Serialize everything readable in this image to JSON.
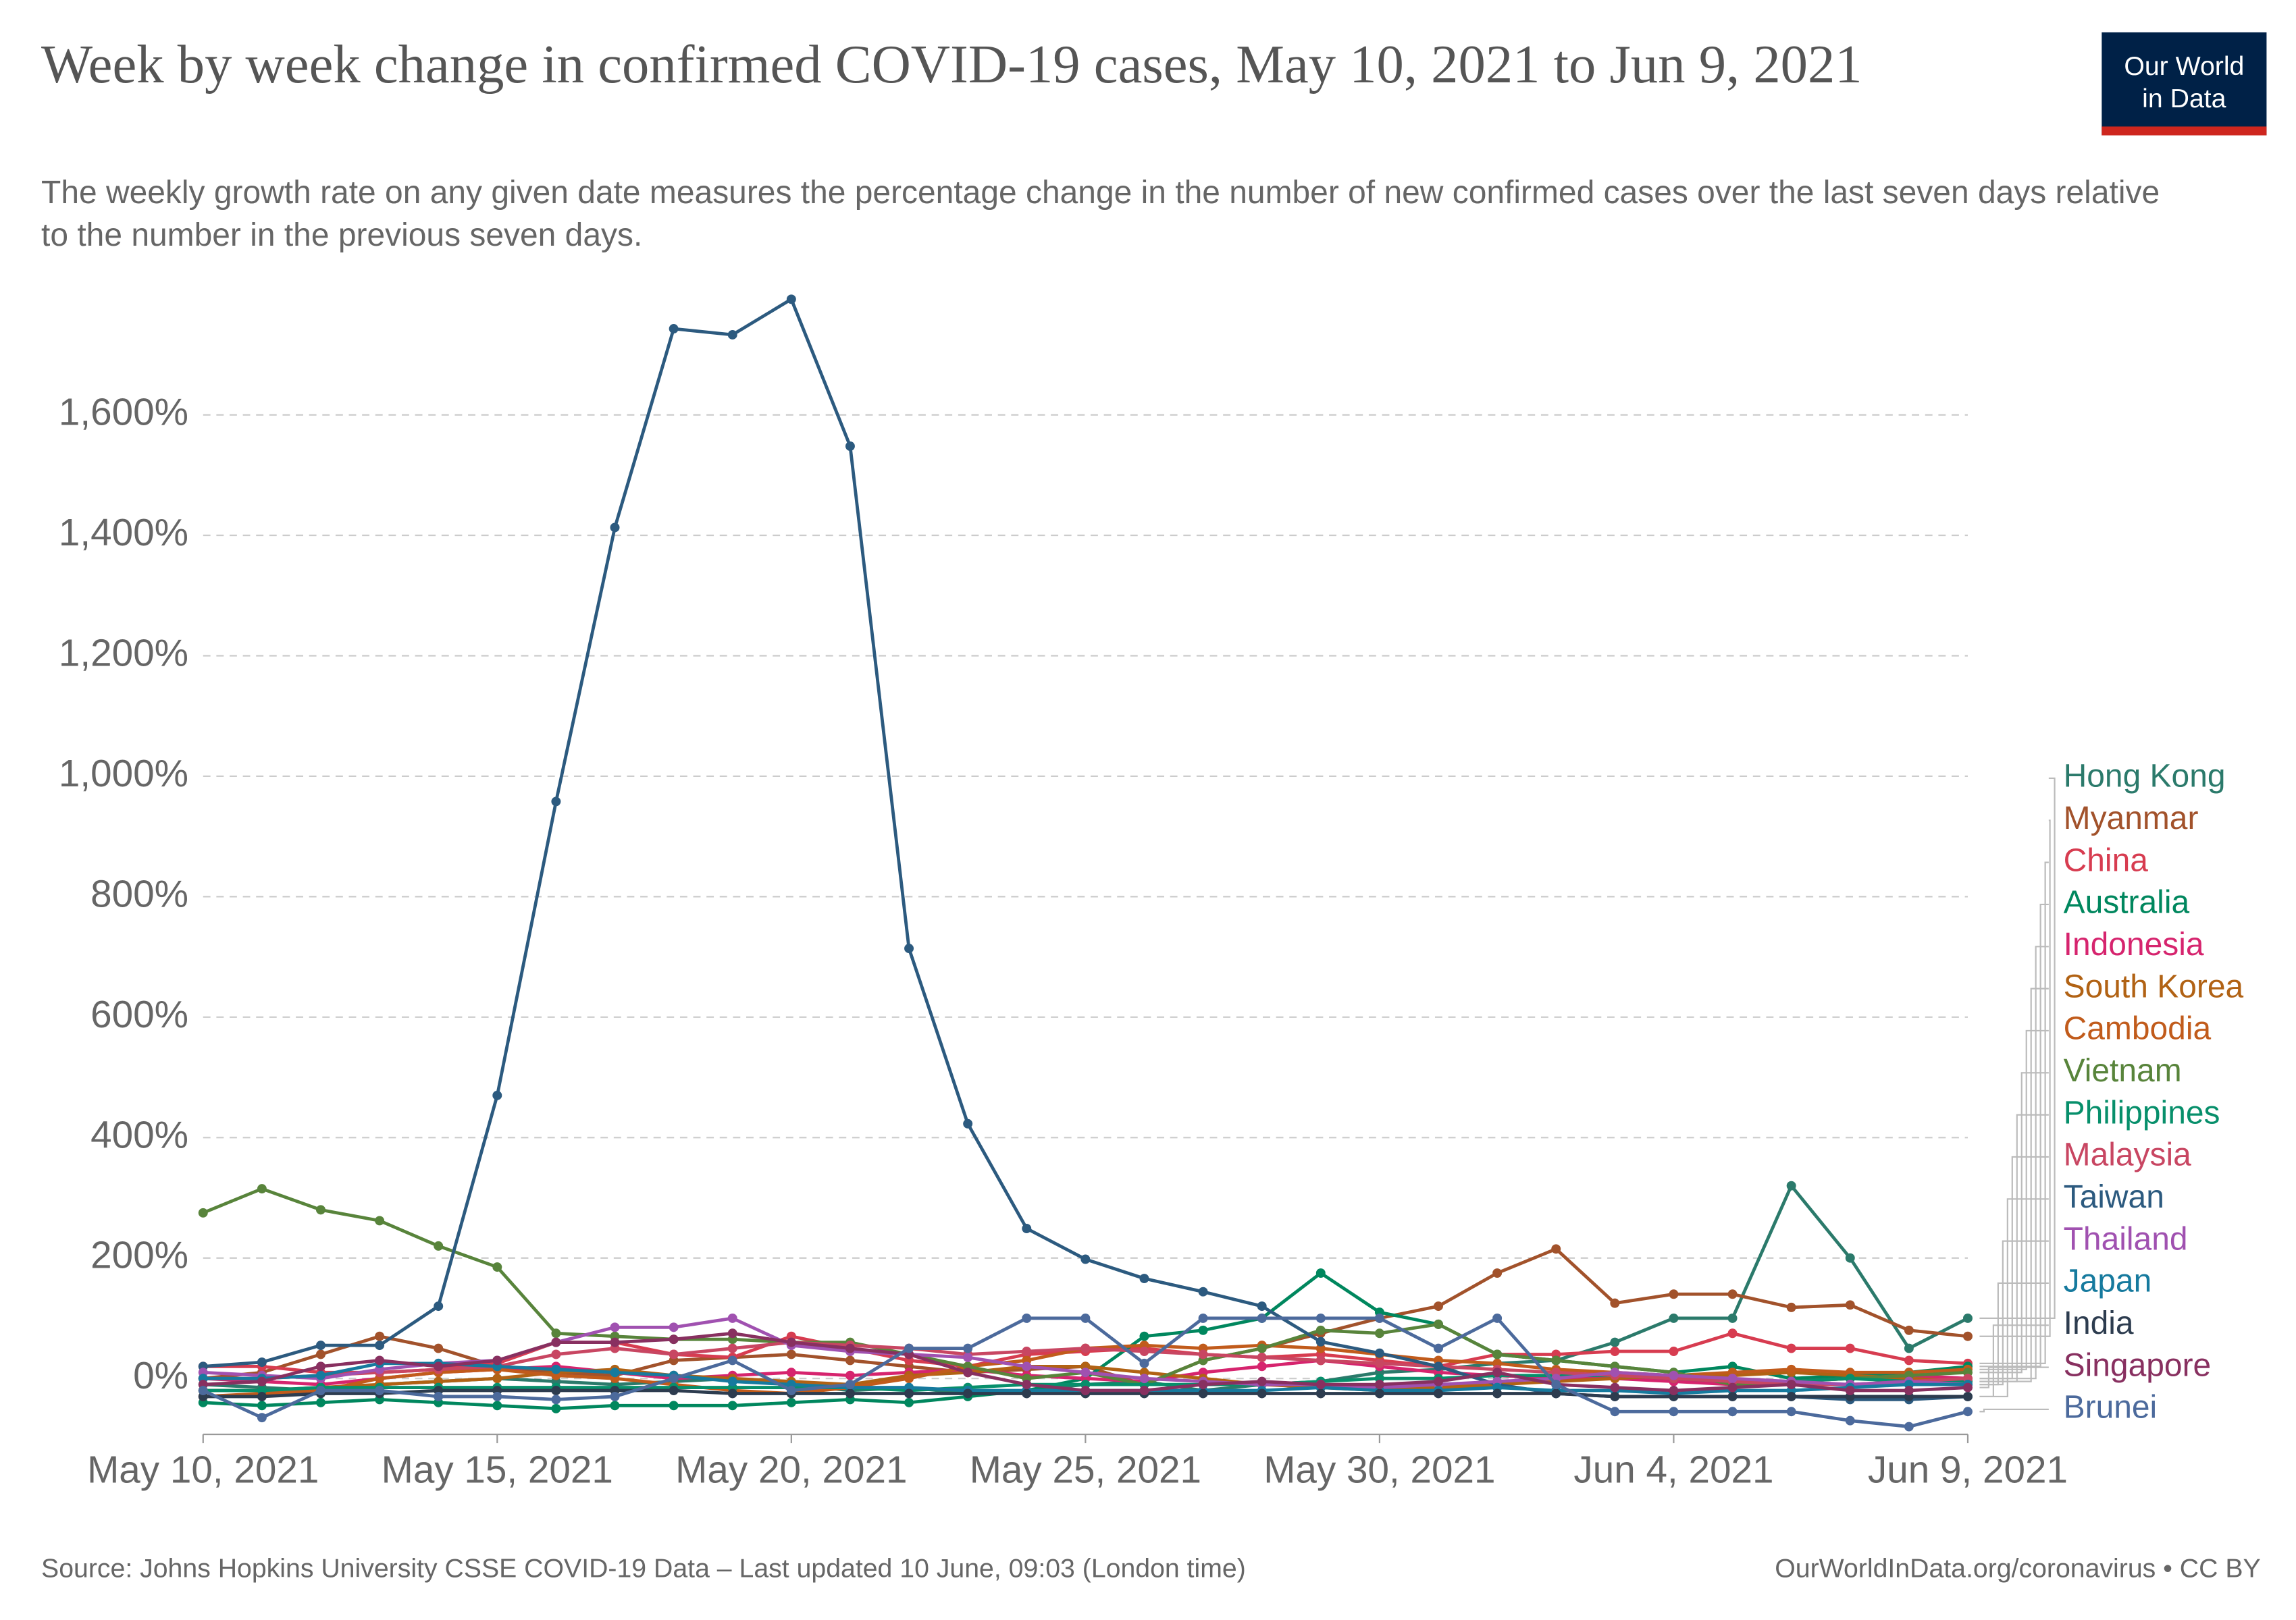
{
  "logo": [
    "Our World",
    "in Data"
  ],
  "chart_data": {
    "type": "line",
    "title": "Week by week change in confirmed COVID-19 cases, May 10, 2021 to Jun 9, 2021",
    "subtitle": "The weekly growth rate on any given date measures the percentage change in the number of new confirmed cases over the last seven days relative to the number in the previous seven days.",
    "source": "Source: Johns Hopkins University CSSE COVID-19 Data – Last updated 10 June, 09:03 (London time)",
    "credit": "OurWorldInData.org/coronavirus • CC BY",
    "x": [
      "2021-05-10",
      "2021-05-11",
      "2021-05-12",
      "2021-05-13",
      "2021-05-14",
      "2021-05-15",
      "2021-05-16",
      "2021-05-17",
      "2021-05-18",
      "2021-05-19",
      "2021-05-20",
      "2021-05-21",
      "2021-05-22",
      "2021-05-23",
      "2021-05-24",
      "2021-05-25",
      "2021-05-26",
      "2021-05-27",
      "2021-05-28",
      "2021-05-29",
      "2021-05-30",
      "2021-05-31",
      "2021-06-01",
      "2021-06-02",
      "2021-06-03",
      "2021-06-04",
      "2021-06-05",
      "2021-06-06",
      "2021-06-07",
      "2021-06-08",
      "2021-06-09"
    ],
    "xlim": [
      "2021-05-10",
      "2021-06-09"
    ],
    "xticks": [
      {
        "value": "2021-05-10",
        "label": "May 10, 2021"
      },
      {
        "value": "2021-05-15",
        "label": "May 15, 2021"
      },
      {
        "value": "2021-05-20",
        "label": "May 20, 2021"
      },
      {
        "value": "2021-05-25",
        "label": "May 25, 2021"
      },
      {
        "value": "2021-05-30",
        "label": "May 30, 2021"
      },
      {
        "value": "2021-06-04",
        "label": "Jun 4, 2021"
      },
      {
        "value": "2021-06-09",
        "label": "Jun 9, 2021"
      }
    ],
    "ylim": [
      -100,
      1850
    ],
    "yticks": [
      {
        "value": 0,
        "label": "0%"
      },
      {
        "value": 200,
        "label": "200%"
      },
      {
        "value": 400,
        "label": "400%"
      },
      {
        "value": 600,
        "label": "600%"
      },
      {
        "value": 800,
        "label": "800%"
      },
      {
        "value": 1000,
        "label": "1,000%"
      },
      {
        "value": 1200,
        "label": "1,200%"
      },
      {
        "value": 1400,
        "label": "1,400%"
      },
      {
        "value": 1600,
        "label": "1,600%"
      }
    ],
    "grid": true,
    "series": [
      {
        "name": "Hong Kong",
        "color": "#2b7a6b",
        "values": [
          -10,
          -15,
          -20,
          -10,
          -5,
          0,
          -5,
          -10,
          -5,
          0,
          -10,
          -20,
          -15,
          -25,
          -20,
          -10,
          -5,
          -20,
          -10,
          -5,
          10,
          15,
          25,
          30,
          60,
          100,
          100,
          320,
          200,
          50,
          100
        ]
      },
      {
        "name": "Myanmar",
        "color": "#a2522b",
        "values": [
          0,
          10,
          40,
          70,
          50,
          20,
          10,
          5,
          30,
          35,
          40,
          30,
          20,
          10,
          15,
          20,
          -10,
          30,
          50,
          75,
          100,
          120,
          175,
          215,
          125,
          140,
          140,
          118,
          122,
          80,
          70
        ]
      },
      {
        "name": "China",
        "color": "#d73c50",
        "values": [
          20,
          20,
          10,
          10,
          15,
          25,
          60,
          60,
          40,
          35,
          70,
          50,
          30,
          20,
          40,
          45,
          50,
          40,
          35,
          40,
          30,
          20,
          40,
          40,
          45,
          45,
          75,
          50,
          50,
          30,
          25
        ]
      },
      {
        "name": "Australia",
        "color": "#00875e",
        "values": [
          -40,
          -45,
          -40,
          -35,
          -40,
          -45,
          -50,
          -45,
          -45,
          -45,
          -40,
          -35,
          -40,
          -30,
          -20,
          0,
          70,
          80,
          100,
          175,
          110,
          90,
          40,
          30,
          20,
          10,
          20,
          0,
          5,
          10,
          20
        ]
      },
      {
        "name": "Indonesia",
        "color": "#d6246e",
        "values": [
          0,
          -5,
          -10,
          0,
          10,
          15,
          20,
          10,
          0,
          5,
          10,
          5,
          10,
          15,
          5,
          0,
          -5,
          10,
          20,
          30,
          20,
          10,
          5,
          0,
          0,
          -5,
          -10,
          -5,
          0,
          5,
          0
        ]
      },
      {
        "name": "South Korea",
        "color": "#b16214",
        "values": [
          -20,
          -20,
          -15,
          -10,
          -5,
          0,
          10,
          15,
          5,
          0,
          -5,
          -10,
          5,
          10,
          20,
          20,
          10,
          0,
          -10,
          -15,
          -20,
          -15,
          -10,
          -5,
          0,
          5,
          5,
          10,
          5,
          0,
          -5
        ]
      },
      {
        "name": "Cambodia",
        "color": "#c15b1b",
        "values": [
          -30,
          -25,
          -20,
          0,
          10,
          15,
          5,
          0,
          -10,
          -20,
          -25,
          -15,
          0,
          20,
          30,
          50,
          55,
          50,
          55,
          50,
          40,
          30,
          25,
          15,
          10,
          5,
          10,
          15,
          10,
          10,
          15
        ]
      },
      {
        "name": "Vietnam",
        "color": "#58843b",
        "values": [
          275,
          315,
          280,
          262,
          220,
          185,
          75,
          70,
          65,
          65,
          60,
          60,
          40,
          20,
          0,
          10,
          -10,
          30,
          50,
          80,
          75,
          90,
          40,
          30,
          20,
          10,
          -10,
          -5,
          0,
          5,
          10
        ]
      },
      {
        "name": "Philippines",
        "color": "#078f6b",
        "values": [
          -20,
          -20,
          -15,
          -15,
          -15,
          -15,
          -15,
          -15,
          -15,
          -15,
          -15,
          -15,
          -20,
          -15,
          -10,
          -10,
          -10,
          -10,
          -10,
          -5,
          0,
          0,
          5,
          5,
          5,
          0,
          -5,
          -5,
          0,
          -5,
          -5
        ]
      },
      {
        "name": "Malaysia",
        "color": "#c84662",
        "values": [
          0,
          0,
          5,
          10,
          15,
          20,
          40,
          50,
          40,
          50,
          60,
          55,
          50,
          40,
          45,
          50,
          45,
          40,
          35,
          30,
          25,
          20,
          15,
          10,
          5,
          0,
          -5,
          -10,
          -10,
          -5,
          0
        ]
      },
      {
        "name": "Taiwan",
        "color": "#2c5a7f",
        "values": [
          20,
          27,
          55,
          55,
          120,
          470,
          958,
          1413,
          1743,
          1733,
          1792,
          1548,
          714,
          423,
          249,
          198,
          166,
          144,
          120,
          61,
          42,
          20,
          -10,
          -25,
          -30,
          -30,
          -30,
          -30,
          -35,
          -35,
          -30
        ]
      },
      {
        "name": "Thailand",
        "color": "#a051b0",
        "values": [
          10,
          5,
          0,
          15,
          25,
          30,
          60,
          85,
          85,
          100,
          55,
          45,
          40,
          35,
          20,
          10,
          0,
          -5,
          -10,
          -10,
          -15,
          -10,
          -5,
          0,
          10,
          5,
          0,
          -5,
          -10,
          -5,
          -10
        ]
      },
      {
        "name": "Japan",
        "color": "#167a9e",
        "values": [
          0,
          0,
          5,
          25,
          25,
          20,
          15,
          10,
          5,
          -5,
          -10,
          -15,
          -15,
          -20,
          -20,
          -20,
          -20,
          -20,
          -20,
          -15,
          -20,
          -20,
          -15,
          -20,
          -20,
          -25,
          -20,
          -20,
          -15,
          -10,
          -10
        ]
      },
      {
        "name": "India",
        "color": "#2d3c4f",
        "values": [
          -30,
          -30,
          -25,
          -25,
          -20,
          -20,
          -20,
          -20,
          -20,
          -25,
          -25,
          -25,
          -25,
          -25,
          -25,
          -25,
          -25,
          -25,
          -25,
          -25,
          -25,
          -25,
          -25,
          -25,
          -30,
          -30,
          -30,
          -30,
          -30,
          -30,
          -30
        ]
      },
      {
        "name": "Singapore",
        "color": "#883060",
        "values": [
          -10,
          -5,
          20,
          30,
          20,
          30,
          60,
          60,
          65,
          75,
          60,
          50,
          40,
          10,
          -10,
          -20,
          -20,
          -10,
          -5,
          -10,
          -10,
          -5,
          10,
          -10,
          -15,
          -20,
          -15,
          -10,
          -20,
          -20,
          -15
        ]
      },
      {
        "name": "Brunei",
        "color": "#4c6a9c",
        "values": [
          -20,
          -65,
          -20,
          -20,
          -30,
          -30,
          -35,
          -30,
          0,
          30,
          -20,
          -10,
          50,
          50,
          100,
          100,
          25,
          100,
          100,
          100,
          100,
          50,
          100,
          -10,
          -55,
          -55,
          -55,
          -55,
          -70,
          -80,
          -55
        ]
      }
    ]
  }
}
